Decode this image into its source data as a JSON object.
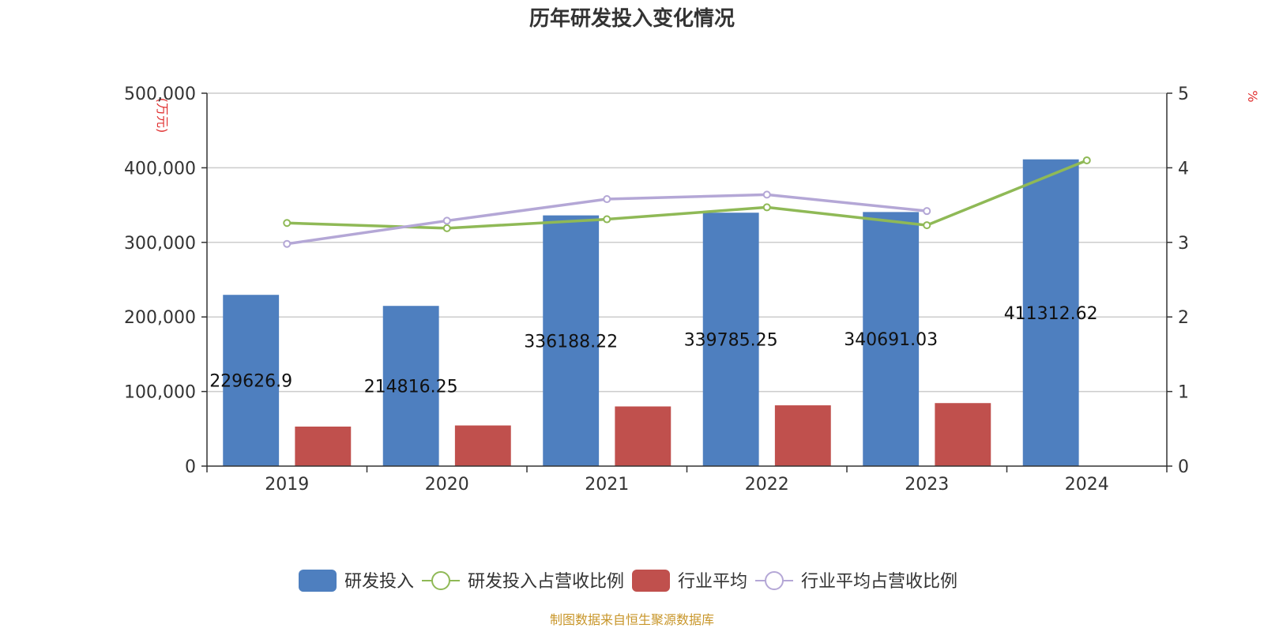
{
  "chart_data": {
    "type": "bar",
    "title": "历年研发投入变化情况",
    "categories": [
      "2019",
      "2020",
      "2021",
      "2022",
      "2023",
      "2024"
    ],
    "left_axis": {
      "unit_label": "(万元)",
      "ylim": [
        0,
        500000
      ],
      "ticks": [
        "0",
        "100,000",
        "200,000",
        "300,000",
        "400,000",
        "500,000"
      ]
    },
    "right_axis": {
      "unit_label": "%",
      "ylim": [
        0,
        5
      ],
      "ticks": [
        "0",
        "1",
        "2",
        "3",
        "4",
        "5"
      ]
    },
    "grid": true,
    "legend_position": "bottom-center",
    "series": [
      {
        "name": "研发投入",
        "type": "bar",
        "axis": "left",
        "color": "#4e7fbf",
        "values": [
          229626.9,
          214816.25,
          336188.22,
          339785.25,
          340691.03,
          411312.62
        ],
        "data_labels": [
          "229626.9",
          "214816.25",
          "336188.22",
          "339785.25",
          "340691.03",
          "411312.62"
        ]
      },
      {
        "name": "研发投入占营收比例",
        "type": "line",
        "axis": "right",
        "color": "#8fb956",
        "values": [
          3.26,
          3.19,
          3.31,
          3.47,
          3.23,
          4.1
        ]
      },
      {
        "name": "行业平均",
        "type": "bar",
        "axis": "left",
        "color": "#c0504d",
        "values": [
          53000,
          54500,
          80000,
          81500,
          84500,
          null
        ]
      },
      {
        "name": "行业平均占营收比例",
        "type": "line",
        "axis": "right",
        "color": "#b4a7d6",
        "values": [
          2.98,
          3.29,
          3.58,
          3.64,
          3.42,
          null
        ]
      }
    ]
  },
  "footer": {
    "source": "制图数据来自恒生聚源数据库"
  }
}
